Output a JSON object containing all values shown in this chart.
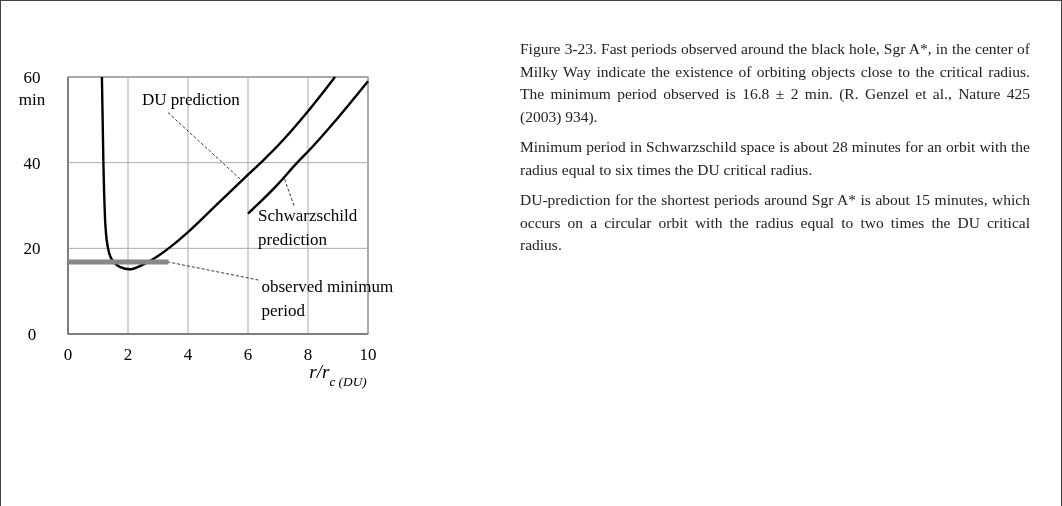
{
  "chart_data": {
    "type": "line",
    "xlabel": "r/r$_{c (DU)}$",
    "ylabel": "min",
    "xlim": [
      0,
      10
    ],
    "ylim": [
      0,
      60
    ],
    "xticks": [
      0,
      2,
      4,
      6,
      8,
      10
    ],
    "yticks": [
      0,
      20,
      40,
      60
    ],
    "grid": true,
    "marker": "none",
    "line_style": "solid",
    "series": [
      {
        "color": "#000000",
        "x": [
          1.13,
          1.18,
          1.25,
          1.35,
          1.5,
          1.75,
          2.05,
          2.5,
          3,
          3.5,
          4,
          5,
          6,
          6.5,
          7,
          8,
          8.9
        ],
        "values": [
          60,
          40,
          25,
          19.5,
          17,
          15.6,
          15.1,
          16.2,
          18.2,
          20.8,
          23.8,
          30.5,
          37.2,
          40.5,
          44,
          52,
          60
        ]
      },
      {
        "color": "#000000",
        "x": [
          6,
          7,
          7.64,
          8,
          9,
          10
        ],
        "values": [
          28.1,
          35,
          40,
          42.6,
          50.5,
          59
        ]
      },
      {
        "color": "#888888",
        "x": [
          0,
          3.35
        ],
        "values": [
          16.8,
          16.8
        ]
      }
    ],
    "annotations": [
      {
        "text": "DU prediction",
        "x": 5.8,
        "y": 35.8
      },
      {
        "text": "Schwarzschild prediction",
        "x": 7.2,
        "y": 36.5
      },
      {
        "text": "observed minimum period",
        "x": 3.35,
        "y": 16.8
      },
      "Figure 3-23. Fast periods observed around the black hole, Sgr A*, in the center of Milky Way indicate the existence of orbiting objects close to the critical radius. The minimum period observed is 16.8 ± 2 min. (R. Genzel et al., Nature 425 (2003) 934).",
      "Minimum period in Schwarzschild space is about 28 minutes for an orbit with the radius equal to six times the DU critical radius.",
      "DU-prediction for the shortest periods around Sgr A* is about 15 minutes, which occurs on a circular orbit with the radius equal to two times the DU critical radius."
    ]
  }
}
